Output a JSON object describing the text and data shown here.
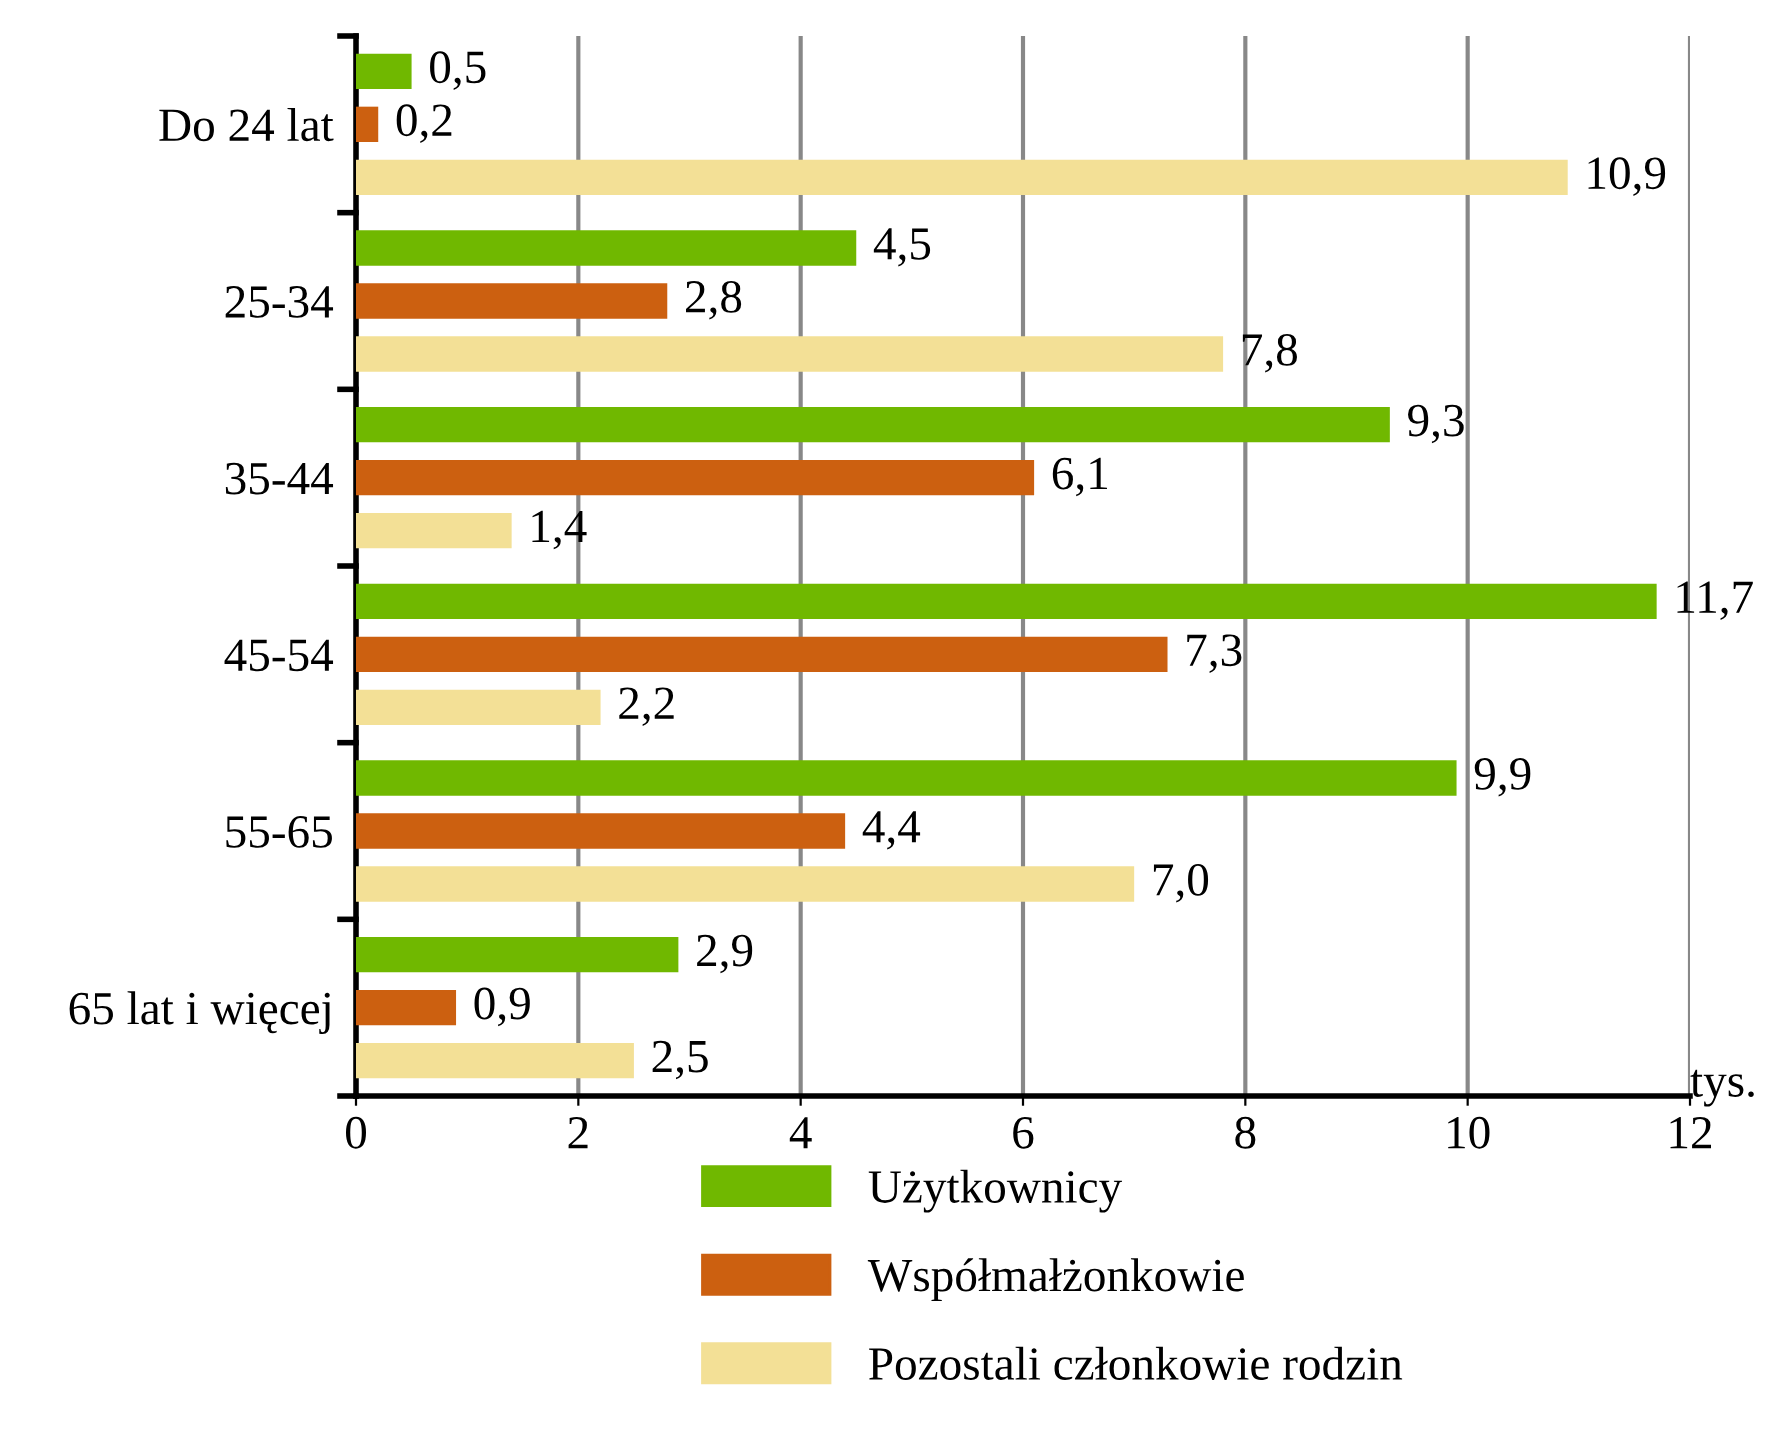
{
  "chart_data": {
    "type": "bar",
    "orientation": "horizontal",
    "xlabel": "tys.",
    "categories": [
      "Do 24 lat",
      "25-34",
      "35-44",
      "45-54",
      "55-65",
      "65 lat i więcej"
    ],
    "series": [
      {
        "name": "Użytkownicy",
        "color": "#70b800",
        "values": [
          0.5,
          4.5,
          9.3,
          11.7,
          9.9,
          2.9
        ],
        "value_labels": [
          "0,5",
          "4,5",
          "9,3",
          "11,7",
          "9,9",
          "2,9"
        ]
      },
      {
        "name": "Współmałżonkowie",
        "color": "#cc6010",
        "values": [
          0.2,
          2.8,
          6.1,
          7.3,
          4.4,
          0.9
        ],
        "value_labels": [
          "0,2",
          "2,8",
          "6,1",
          "7,3",
          "4,4",
          "0,9"
        ]
      },
      {
        "name": "Pozostali członkowie rodzin",
        "color": "#f3e096",
        "values": [
          10.9,
          7.8,
          1.4,
          2.2,
          7.0,
          2.5
        ],
        "value_labels": [
          "10,9",
          "7,8",
          "1,4",
          "2,2",
          "7,0",
          "2,5"
        ]
      }
    ],
    "xlim": [
      0,
      12
    ],
    "xticks": [
      0,
      2,
      4,
      6,
      8,
      10,
      12
    ],
    "grid": "x",
    "legend": "bottom"
  }
}
